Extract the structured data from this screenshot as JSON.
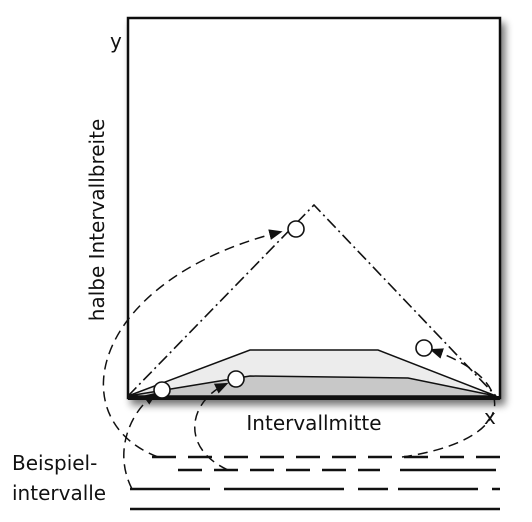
{
  "labels": {
    "y_axis": "y",
    "x_axis": "x",
    "y_title": "halbe Intervallbreite",
    "x_title": "Intervallmitte",
    "legend_line1": "Beispiel-",
    "legend_line2": "intervalle"
  },
  "colors": {
    "stroke": "#111111",
    "shade_dark": "#c8c8c8",
    "shade_light": "#ececec",
    "point_fill": "#ffffff"
  }
}
